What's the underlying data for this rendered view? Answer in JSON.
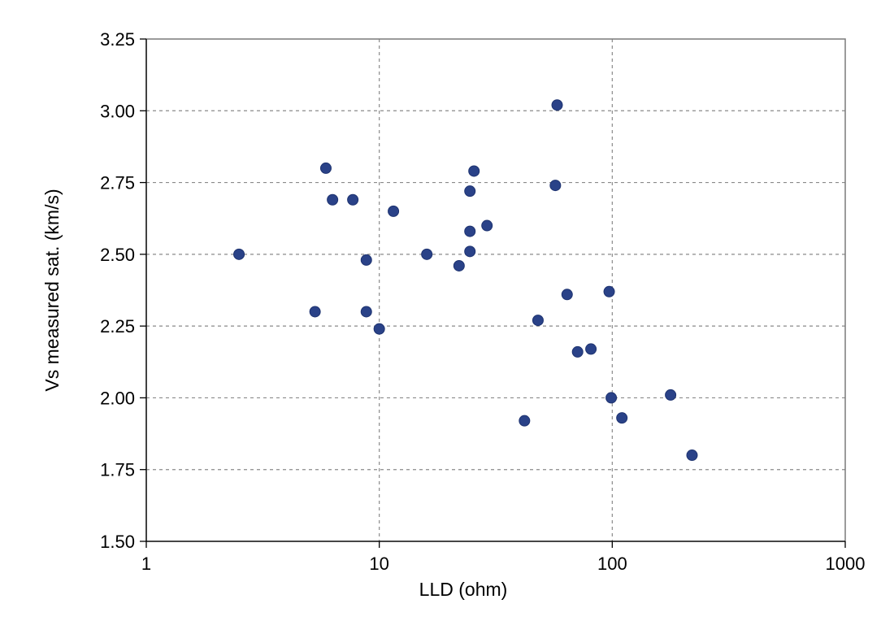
{
  "chart_data": {
    "type": "scatter",
    "title": "",
    "xlabel": "LLD (ohm)",
    "ylabel": "Vs measured sat. (km/s)",
    "xscale": "log",
    "xlim": [
      1,
      1000
    ],
    "ylim": [
      1.5,
      3.25
    ],
    "xticks": [
      "1",
      "10",
      "100",
      "1000"
    ],
    "yticks": [
      "1.50",
      "1.75",
      "2.00",
      "2.25",
      "2.50",
      "2.75",
      "3.00",
      "3.25"
    ],
    "grid": true,
    "legend": "none",
    "marker_color": "#2a4288",
    "series": [
      {
        "points": [
          {
            "x": 2.5,
            "y": 2.5
          },
          {
            "x": 5.3,
            "y": 2.3
          },
          {
            "x": 5.9,
            "y": 2.8
          },
          {
            "x": 6.3,
            "y": 2.69
          },
          {
            "x": 7.7,
            "y": 2.69
          },
          {
            "x": 8.8,
            "y": 2.48
          },
          {
            "x": 8.8,
            "y": 2.3
          },
          {
            "x": 10.0,
            "y": 2.24
          },
          {
            "x": 11.5,
            "y": 2.65
          },
          {
            "x": 16.0,
            "y": 2.5
          },
          {
            "x": 22.0,
            "y": 2.46
          },
          {
            "x": 24.5,
            "y": 2.72
          },
          {
            "x": 24.5,
            "y": 2.58
          },
          {
            "x": 24.5,
            "y": 2.51
          },
          {
            "x": 25.5,
            "y": 2.79
          },
          {
            "x": 29.0,
            "y": 2.6
          },
          {
            "x": 42.0,
            "y": 1.92
          },
          {
            "x": 48.0,
            "y": 2.27
          },
          {
            "x": 57.0,
            "y": 2.74
          },
          {
            "x": 58.0,
            "y": 3.02
          },
          {
            "x": 64.0,
            "y": 2.36
          },
          {
            "x": 71.0,
            "y": 2.16
          },
          {
            "x": 81.0,
            "y": 2.17
          },
          {
            "x": 97.0,
            "y": 2.37
          },
          {
            "x": 99.0,
            "y": 2.0
          },
          {
            "x": 110.0,
            "y": 1.93
          },
          {
            "x": 178.0,
            "y": 2.01
          },
          {
            "x": 220.0,
            "y": 1.8
          }
        ]
      }
    ]
  }
}
